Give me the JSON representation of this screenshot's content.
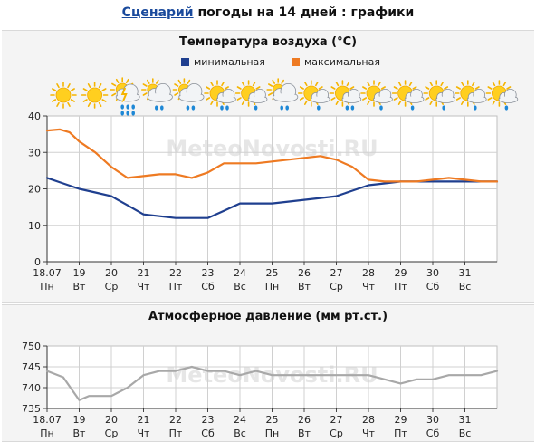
{
  "header": {
    "link_text": "Сценарий",
    "title_rest": " погоды на 14 дней : графики"
  },
  "colors": {
    "min_line": "#1f3f8f",
    "max_line": "#ee7a22",
    "pressure_line": "#a8a8a8",
    "grid": "#d0d0d0",
    "link": "#1a4a9c",
    "watermark": "#e6e6e6"
  },
  "icons": [
    "sun-icon",
    "sun-icon",
    "thunderstorm-heavy-rain-icon",
    "cloudy-rain-icon",
    "cloudy-rain-icon",
    "partly-cloudy-rain-icon",
    "partly-cloudy-light-rain-icon",
    "cloudy-rain-icon",
    "partly-cloudy-light-rain-icon",
    "partly-cloudy-rain-icon",
    "partly-cloudy-light-rain-icon",
    "partly-cloudy-light-rain-icon",
    "partly-cloudy-light-rain-icon",
    "partly-cloudy-light-rain-icon",
    "partly-cloudy-light-rain-icon"
  ],
  "watermark": "MeteoNovosti.RU",
  "chart_data": [
    {
      "type": "line",
      "title": "Температура воздуха (°С)",
      "legend_position": "top-center",
      "grid": true,
      "x": [
        "18.07",
        "19",
        "20",
        "21",
        "22",
        "23",
        "24",
        "25",
        "26",
        "27",
        "28",
        "29",
        "30",
        "31"
      ],
      "x_sub": [
        "Пн",
        "Вт",
        "Ср",
        "Чт",
        "Пт",
        "Сб",
        "Вс",
        "Пн",
        "Вт",
        "Ср",
        "Чт",
        "Пт",
        "Сб",
        "Вс"
      ],
      "ylim": [
        0,
        40
      ],
      "yticks": [
        0,
        10,
        20,
        30,
        40
      ],
      "xlim": [
        0,
        14
      ],
      "series": [
        {
          "name": "минимальная",
          "color": "#1f3f8f",
          "points": [
            [
              0,
              23
            ],
            [
              0.5,
              21.5
            ],
            [
              1,
              20
            ],
            [
              1.5,
              19
            ],
            [
              2,
              18
            ],
            [
              2.5,
              15.5
            ],
            [
              3,
              13
            ],
            [
              3.5,
              12.5
            ],
            [
              4,
              12
            ],
            [
              4.5,
              12
            ],
            [
              5,
              12
            ],
            [
              5.5,
              14
            ],
            [
              6,
              16
            ],
            [
              6.5,
              16
            ],
            [
              7,
              16
            ],
            [
              7.5,
              16.5
            ],
            [
              8,
              17
            ],
            [
              8.5,
              17.5
            ],
            [
              9,
              18
            ],
            [
              9.5,
              19.5
            ],
            [
              10,
              21
            ],
            [
              10.5,
              21.5
            ],
            [
              11,
              22
            ],
            [
              11.5,
              22
            ],
            [
              12,
              22
            ],
            [
              12.5,
              22
            ],
            [
              13,
              22
            ],
            [
              13.5,
              22
            ],
            [
              14,
              22
            ]
          ]
        },
        {
          "name": "максимальная",
          "color": "#ee7a22",
          "points": [
            [
              0,
              36
            ],
            [
              0.4,
              36.3
            ],
            [
              0.7,
              35.5
            ],
            [
              1,
              33
            ],
            [
              1.5,
              30
            ],
            [
              2,
              26
            ],
            [
              2.5,
              23
            ],
            [
              3,
              23.5
            ],
            [
              3.5,
              24
            ],
            [
              4,
              24
            ],
            [
              4.5,
              23
            ],
            [
              5,
              24.5
            ],
            [
              5.5,
              27
            ],
            [
              6,
              27
            ],
            [
              6.5,
              27
            ],
            [
              7,
              27.5
            ],
            [
              7.5,
              28
            ],
            [
              8,
              28.5
            ],
            [
              8.5,
              29
            ],
            [
              9,
              28
            ],
            [
              9.5,
              26
            ],
            [
              10,
              22.5
            ],
            [
              10.5,
              22
            ],
            [
              11,
              22
            ],
            [
              11.5,
              22
            ],
            [
              12,
              22.5
            ],
            [
              12.5,
              23
            ],
            [
              13,
              22.5
            ],
            [
              13.5,
              22
            ],
            [
              14,
              22
            ]
          ]
        }
      ]
    },
    {
      "type": "line",
      "title": "Атмосферное давление (мм рт.ст.)",
      "grid": true,
      "x": [
        "18.07",
        "19",
        "20",
        "21",
        "22",
        "23",
        "24",
        "25",
        "26",
        "27",
        "28",
        "29",
        "30",
        "31"
      ],
      "x_sub": [
        "Пн",
        "Вт",
        "Ср",
        "Чт",
        "Пт",
        "Сб",
        "Вс",
        "Пн",
        "Вт",
        "Ср",
        "Чт",
        "Пт",
        "Сб",
        "Вс"
      ],
      "ylim": [
        735,
        750
      ],
      "yticks": [
        735,
        740,
        745,
        750
      ],
      "xlim": [
        0,
        14
      ],
      "series": [
        {
          "color": "#a8a8a8",
          "points": [
            [
              0,
              744
            ],
            [
              0.5,
              742.5
            ],
            [
              1,
              737
            ],
            [
              1.3,
              738
            ],
            [
              1.6,
              738
            ],
            [
              2,
              738
            ],
            [
              2.5,
              740
            ],
            [
              3,
              743
            ],
            [
              3.5,
              744
            ],
            [
              4,
              744
            ],
            [
              4.5,
              745
            ],
            [
              5,
              744
            ],
            [
              5.5,
              744
            ],
            [
              6,
              743
            ],
            [
              6.5,
              744
            ],
            [
              7,
              743
            ],
            [
              7.5,
              743
            ],
            [
              8,
              743
            ],
            [
              8.5,
              743
            ],
            [
              9,
              743
            ],
            [
              9.5,
              743
            ],
            [
              10,
              743
            ],
            [
              10.5,
              742
            ],
            [
              11,
              741
            ],
            [
              11.5,
              742
            ],
            [
              12,
              742
            ],
            [
              12.5,
              743
            ],
            [
              13,
              743
            ],
            [
              13.5,
              743
            ],
            [
              14,
              744
            ]
          ]
        }
      ]
    }
  ]
}
